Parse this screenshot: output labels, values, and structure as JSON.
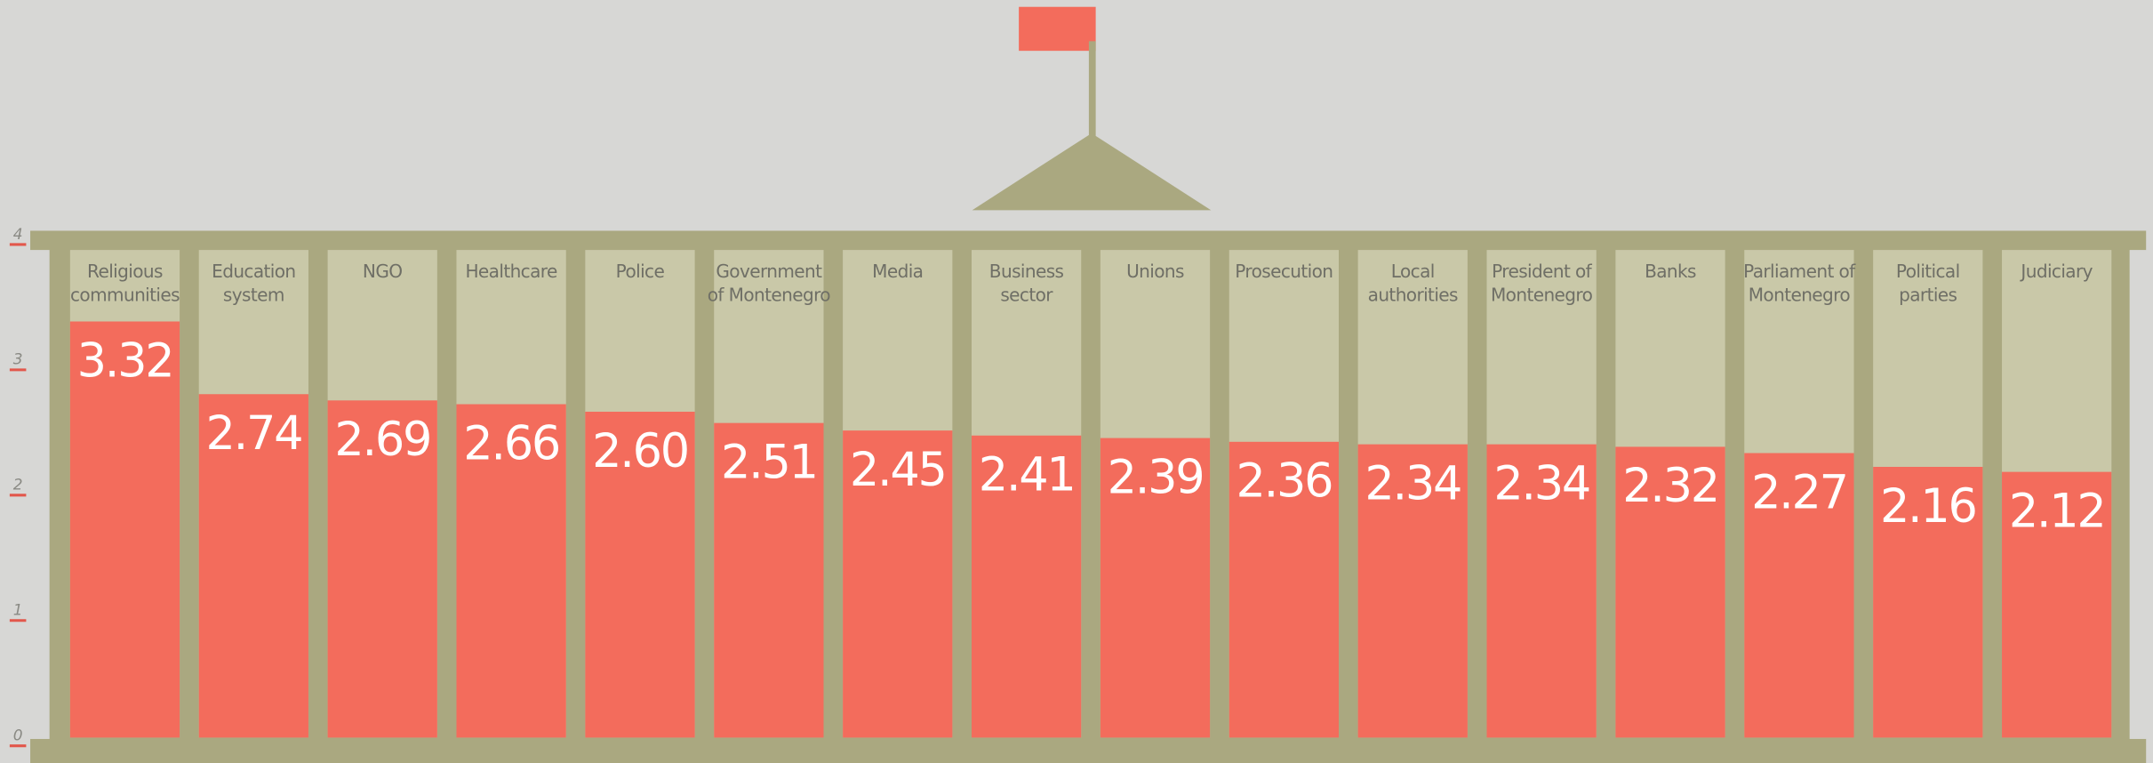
{
  "chart_data": {
    "type": "bar",
    "categories": [
      "Religious communities",
      "Education system",
      "NGO",
      "Healthcare",
      "Police",
      "Government of Montenegro",
      "Media",
      "Business sector",
      "Unions",
      "Prosecution",
      "Local authorities",
      "President of Montenegro",
      "Banks",
      "Parliament of Montenegro",
      "Political parties",
      "Judiciary"
    ],
    "values": [
      3.32,
      2.74,
      2.69,
      2.66,
      2.6,
      2.51,
      2.45,
      2.41,
      2.39,
      2.36,
      2.34,
      2.34,
      2.32,
      2.27,
      2.16,
      2.12
    ],
    "value_labels": [
      "3.32",
      "2.74",
      "2.69",
      "2.66",
      "2.60",
      "2.51",
      "2.45",
      "2.41",
      "2.39",
      "2.36",
      "2.34",
      "2.34",
      "2.32",
      "2.27",
      "2.16",
      "2.12"
    ],
    "color": "#f36c5c",
    "ylim": [
      0,
      4
    ],
    "yticks": [
      0,
      1,
      2,
      3,
      4
    ]
  }
}
